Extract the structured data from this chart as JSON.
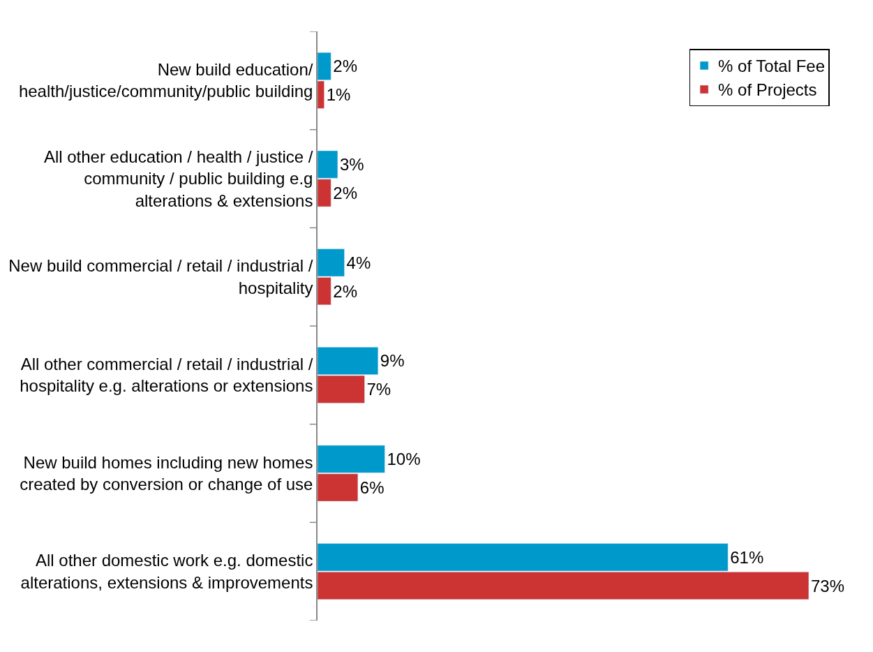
{
  "chart_data": {
    "type": "bar",
    "orientation": "horizontal",
    "categories": [
      "New build education/\nhealth/justice/community/public building",
      "All other education / health / justice /\ncommunity / public building e.g\nalterations & extensions",
      "New build commercial / retail / industrial /\nhospitality",
      "All other commercial / retail / industrial /\nhospitality e.g. alterations or extensions",
      "New build homes including new homes\ncreated by conversion or change of use",
      "All other domestic work e.g. domestic\nalterations, extensions & improvements"
    ],
    "series": [
      {
        "name": "% of Total Fee",
        "color": "#0099cc",
        "values": [
          2,
          3,
          4,
          9,
          10,
          61
        ],
        "value_labels": [
          "2%",
          "3%",
          "4%",
          "9%",
          "10%",
          "61%"
        ]
      },
      {
        "name": "% of Projects",
        "color": "#cc3333",
        "values": [
          1,
          2,
          2,
          7,
          6,
          73
        ],
        "value_labels": [
          "1%",
          "2%",
          "2%",
          "7%",
          "6%",
          "73%"
        ]
      }
    ],
    "legend": "top right",
    "tick_labels": "y"
  }
}
